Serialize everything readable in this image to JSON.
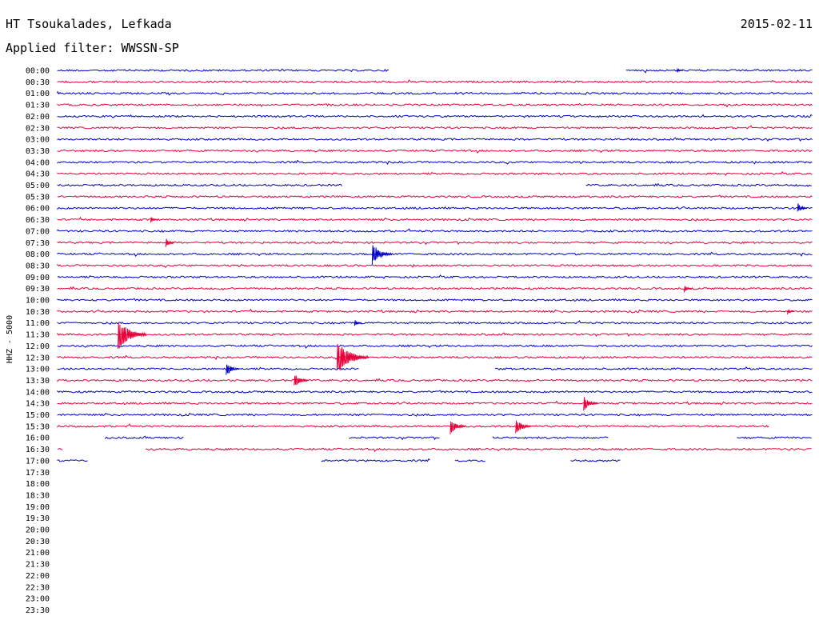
{
  "header": {
    "station": "HT Tsoukalades, Lefkada",
    "date": "2015-02-11",
    "filter": "Applied filter: WWSSN-SP"
  },
  "colors": {
    "blue": "#0000cc",
    "red": "#e8003a"
  },
  "chart_data": {
    "type": "line",
    "ylabel": "HHZ - 5000",
    "x_unit": "minutes",
    "x_range": [
      0,
      30
    ],
    "row_labels": [
      "00:00",
      "00:30",
      "01:00",
      "01:30",
      "02:00",
      "02:30",
      "03:00",
      "03:30",
      "04:00",
      "04:30",
      "05:00",
      "05:30",
      "06:00",
      "06:30",
      "07:00",
      "07:30",
      "08:00",
      "08:30",
      "09:00",
      "09:30",
      "10:00",
      "10:30",
      "11:00",
      "11:30",
      "12:00",
      "12:30",
      "13:00",
      "13:30",
      "14:00",
      "14:30",
      "15:00",
      "15:30",
      "16:00",
      "16:30",
      "17:00",
      "17:30",
      "18:00",
      "18:30",
      "19:00",
      "19:30",
      "20:00",
      "20:30",
      "21:00",
      "21:30",
      "22:00",
      "22:30",
      "23:00",
      "23:30"
    ],
    "traces": [
      {
        "row": 0,
        "color": "blue",
        "segments": [
          [
            0,
            13.2
          ],
          [
            22.6,
            30
          ]
        ]
      },
      {
        "row": 1,
        "color": "red",
        "segments": [
          [
            0,
            30
          ]
        ]
      },
      {
        "row": 2,
        "color": "blue",
        "segments": [
          [
            0,
            30
          ]
        ]
      },
      {
        "row": 3,
        "color": "red",
        "segments": [
          [
            0,
            30
          ]
        ]
      },
      {
        "row": 4,
        "color": "blue",
        "segments": [
          [
            0,
            30
          ]
        ]
      },
      {
        "row": 5,
        "color": "red",
        "segments": [
          [
            0,
            30
          ]
        ]
      },
      {
        "row": 6,
        "color": "blue",
        "segments": [
          [
            0,
            30
          ]
        ]
      },
      {
        "row": 7,
        "color": "red",
        "segments": [
          [
            0,
            30
          ]
        ]
      },
      {
        "row": 8,
        "color": "blue",
        "segments": [
          [
            0,
            30
          ]
        ]
      },
      {
        "row": 9,
        "color": "red",
        "segments": [
          [
            0,
            30
          ]
        ]
      },
      {
        "row": 10,
        "color": "blue",
        "segments": [
          [
            0,
            11.3
          ],
          [
            21.0,
            30
          ]
        ]
      },
      {
        "row": 11,
        "color": "red",
        "segments": [
          [
            0,
            30
          ]
        ]
      },
      {
        "row": 12,
        "color": "blue",
        "segments": [
          [
            0,
            30
          ]
        ]
      },
      {
        "row": 13,
        "color": "red",
        "segments": [
          [
            0,
            30
          ]
        ]
      },
      {
        "row": 14,
        "color": "blue",
        "segments": [
          [
            0,
            30
          ]
        ]
      },
      {
        "row": 15,
        "color": "red",
        "segments": [
          [
            0,
            30
          ]
        ]
      },
      {
        "row": 16,
        "color": "blue",
        "segments": [
          [
            0,
            30
          ]
        ]
      },
      {
        "row": 17,
        "color": "red",
        "segments": [
          [
            0,
            30
          ]
        ]
      },
      {
        "row": 18,
        "color": "blue",
        "segments": [
          [
            0,
            30
          ]
        ]
      },
      {
        "row": 19,
        "color": "red",
        "segments": [
          [
            0,
            30
          ]
        ]
      },
      {
        "row": 20,
        "color": "blue",
        "segments": [
          [
            0,
            30
          ]
        ]
      },
      {
        "row": 21,
        "color": "red",
        "segments": [
          [
            0,
            30
          ]
        ]
      },
      {
        "row": 22,
        "color": "blue",
        "segments": [
          [
            0,
            30
          ]
        ]
      },
      {
        "row": 23,
        "color": "red",
        "segments": [
          [
            0,
            30
          ]
        ]
      },
      {
        "row": 24,
        "color": "blue",
        "segments": [
          [
            0,
            30
          ]
        ]
      },
      {
        "row": 25,
        "color": "red",
        "segments": [
          [
            0,
            30
          ]
        ]
      },
      {
        "row": 26,
        "color": "blue",
        "segments": [
          [
            0,
            12.0
          ],
          [
            17.4,
            30
          ]
        ]
      },
      {
        "row": 27,
        "color": "red",
        "segments": [
          [
            0,
            30
          ]
        ]
      },
      {
        "row": 28,
        "color": "blue",
        "segments": [
          [
            0,
            30
          ]
        ]
      },
      {
        "row": 29,
        "color": "red",
        "segments": [
          [
            0,
            30
          ]
        ]
      },
      {
        "row": 30,
        "color": "blue",
        "segments": [
          [
            0,
            30
          ]
        ]
      },
      {
        "row": 31,
        "color": "red",
        "segments": [
          [
            0,
            28.3
          ]
        ]
      },
      {
        "row": 32,
        "color": "blue",
        "segments": [
          [
            1.9,
            5.0
          ],
          [
            11.6,
            15.2
          ],
          [
            17.3,
            21.9
          ],
          [
            27.0,
            30
          ]
        ]
      },
      {
        "row": 33,
        "color": "red",
        "segments": [
          [
            0,
            0.2
          ],
          [
            3.5,
            30
          ]
        ]
      },
      {
        "row": 34,
        "color": "blue",
        "segments": [
          [
            0,
            1.2
          ],
          [
            10.5,
            14.8
          ],
          [
            15.8,
            17.0
          ],
          [
            20.4,
            22.4
          ]
        ]
      }
    ],
    "events": [
      {
        "row": 0,
        "t": 24.6,
        "amp": 3,
        "color": "blue"
      },
      {
        "row": 12,
        "t": 29.4,
        "amp": 7,
        "color": "blue"
      },
      {
        "row": 13,
        "t": 3.7,
        "amp": 4,
        "color": "red"
      },
      {
        "row": 15,
        "t": 4.3,
        "amp": 6,
        "color": "red"
      },
      {
        "row": 16,
        "t": 12.5,
        "amp": 14,
        "color": "blue"
      },
      {
        "row": 19,
        "t": 24.9,
        "amp": 5,
        "color": "red"
      },
      {
        "row": 21,
        "t": 29.0,
        "amp": 4,
        "color": "red"
      },
      {
        "row": 22,
        "t": 11.8,
        "amp": 5,
        "color": "blue"
      },
      {
        "row": 23,
        "t": 2.4,
        "amp": 20,
        "color": "red"
      },
      {
        "row": 25,
        "t": 11.1,
        "amp": 22,
        "color": "red"
      },
      {
        "row": 26,
        "t": 6.7,
        "amp": 9,
        "color": "blue"
      },
      {
        "row": 27,
        "t": 9.4,
        "amp": 10,
        "color": "red"
      },
      {
        "row": 29,
        "t": 20.9,
        "amp": 10,
        "color": "red"
      },
      {
        "row": 31,
        "t": 15.6,
        "amp": 11,
        "color": "red"
      },
      {
        "row": 31,
        "t": 18.2,
        "amp": 11,
        "color": "red"
      }
    ]
  }
}
